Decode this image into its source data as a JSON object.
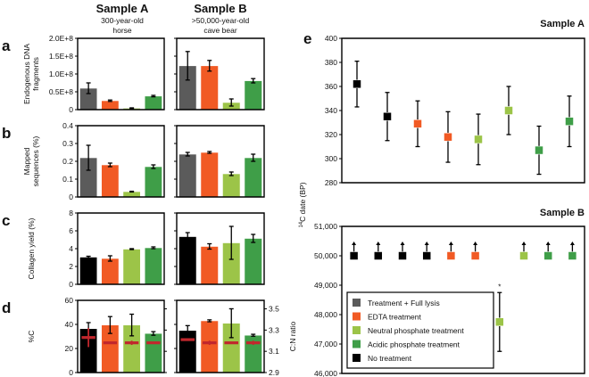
{
  "colors": {
    "full_lysis": "#5b5b5b",
    "edta": "#f15a24",
    "neutral": "#9cc448",
    "acidic": "#3f9e48",
    "none": "#000000",
    "cn_marker": "#c1272d"
  },
  "headers": {
    "sample_a": {
      "title": "Sample A",
      "line1": "300-year-old",
      "line2": "horse"
    },
    "sample_b": {
      "title": "Sample B",
      "line1": ">50,000-year-old",
      "line2": "cave bear"
    }
  },
  "chart_data": [
    {
      "panel": "a",
      "type": "bar",
      "ylabel": [
        "Endogenous DNA",
        "fragments"
      ],
      "ylim": [
        0,
        200000000
      ],
      "yticks": [
        0,
        50000000,
        100000000,
        150000000,
        200000000
      ],
      "ytick_labels": [
        "0",
        "0.5E+8",
        "1.0E+8",
        "1.5E+8",
        "2.0E+8"
      ],
      "bar_colors": [
        "full_lysis",
        "edta",
        "neutral",
        "acidic"
      ],
      "series": [
        {
          "sample": "A",
          "values": [
            60000000,
            25000000,
            4000000,
            38000000
          ],
          "errors": [
            15000000,
            2000000,
            1000000,
            2000000
          ]
        },
        {
          "sample": "B",
          "values": [
            123000000,
            123000000,
            20000000,
            81000000
          ],
          "errors": [
            40000000,
            15000000,
            10000000,
            6000000
          ]
        }
      ]
    },
    {
      "panel": "b",
      "type": "bar",
      "ylabel": [
        "Mapped",
        "sequences (%)"
      ],
      "ylim": [
        0,
        0.4
      ],
      "yticks": [
        0,
        0.1,
        0.2,
        0.3,
        0.4
      ],
      "ytick_labels": [
        "0",
        "0.1",
        "0.2",
        "0.3",
        "0.4"
      ],
      "bar_colors": [
        "full_lysis",
        "edta",
        "neutral",
        "acidic"
      ],
      "series": [
        {
          "sample": "A",
          "values": [
            0.22,
            0.18,
            0.03,
            0.17
          ],
          "errors": [
            0.07,
            0.01,
            0.002,
            0.01
          ]
        },
        {
          "sample": "B",
          "values": [
            0.24,
            0.25,
            0.13,
            0.22
          ],
          "errors": [
            0.01,
            0.005,
            0.01,
            0.02
          ]
        }
      ]
    },
    {
      "panel": "c",
      "type": "bar",
      "ylabel": [
        "Collagen yield (%)"
      ],
      "ylim": [
        0,
        8
      ],
      "yticks": [
        0,
        2,
        4,
        6,
        8
      ],
      "ytick_labels": [
        "0",
        "2",
        "4",
        "6",
        "8"
      ],
      "bar_colors": [
        "none",
        "edta",
        "neutral",
        "acidic"
      ],
      "series": [
        {
          "sample": "A",
          "values": [
            3.05,
            2.9,
            3.95,
            4.1
          ],
          "errors": [
            0.1,
            0.3,
            0.05,
            0.1
          ]
        },
        {
          "sample": "B",
          "values": [
            5.35,
            4.25,
            4.65,
            5.15
          ],
          "errors": [
            0.45,
            0.3,
            1.85,
            0.45
          ]
        }
      ]
    },
    {
      "panel": "d",
      "type": "bar",
      "ylabel": [
        "%C"
      ],
      "y2label": "C:N ratio",
      "ylim": [
        0,
        60
      ],
      "yticks": [
        0,
        20,
        40,
        60
      ],
      "ytick_labels": [
        "0",
        "20",
        "40",
        "60"
      ],
      "y2lim": [
        2.9,
        3.58
      ],
      "y2ticks": [
        2.9,
        3.1,
        3.3,
        3.5
      ],
      "y2tick_labels": [
        "2.9",
        "3.1",
        "3.3",
        "3.5"
      ],
      "bar_colors": [
        "none",
        "edta",
        "neutral",
        "acidic"
      ],
      "series": [
        {
          "sample": "A",
          "values": [
            36.5,
            39.5,
            39.5,
            32.5
          ],
          "errors": [
            5,
            7,
            9,
            1.5
          ],
          "cn_ratio": [
            3.23,
            3.18,
            3.18,
            3.18
          ],
          "cn_errors": [
            0.09,
            0.01,
            0.02,
            0.01
          ]
        },
        {
          "sample": "B",
          "values": [
            35,
            43,
            41,
            31
          ],
          "errors": [
            4,
            0.8,
            12,
            0.8
          ],
          "cn_ratio": [
            3.21,
            3.18,
            3.18,
            3.18
          ],
          "cn_errors": [
            0.005,
            0.02,
            0.01,
            0.02
          ]
        }
      ]
    },
    {
      "panel": "e",
      "type": "scatter",
      "ylabel": "14C date (BP)",
      "ylabel_sup": "14",
      "ylabel_rest": "C date (BP)",
      "subplots": [
        {
          "title": "Sample A",
          "ylim": [
            280,
            400
          ],
          "yticks": [
            280,
            300,
            320,
            340,
            360,
            380,
            400
          ],
          "ytick_labels": [
            "280",
            "300",
            "320",
            "340",
            "360",
            "380",
            "400"
          ],
          "points": [
            {
              "y": 362,
              "err": 19,
              "color": "none"
            },
            {
              "y": 335,
              "err": 20,
              "color": "none"
            },
            {
              "y": 329,
              "err": 19,
              "color": "edta"
            },
            {
              "y": 318,
              "err": 21,
              "color": "edta"
            },
            {
              "y": 316,
              "err": 21,
              "color": "neutral"
            },
            {
              "y": 340,
              "err": 20,
              "color": "neutral"
            },
            {
              "y": 307,
              "err": 20,
              "color": "acidic"
            },
            {
              "y": 331,
              "err": 21,
              "color": "acidic"
            }
          ]
        },
        {
          "title": "Sample B",
          "ylim": [
            46000,
            51000
          ],
          "yticks": [
            46000,
            47000,
            48000,
            49000,
            50000,
            51000
          ],
          "ytick_labels": [
            "46,000",
            "47,000",
            "48,000",
            "49,000",
            "50,000",
            "51,000"
          ],
          "points": [
            {
              "y": 50000,
              "lower_bound": true,
              "color": "none"
            },
            {
              "y": 50000,
              "lower_bound": true,
              "color": "none"
            },
            {
              "y": 50000,
              "lower_bound": true,
              "color": "none"
            },
            {
              "y": 50000,
              "lower_bound": true,
              "color": "none"
            },
            {
              "y": 50000,
              "lower_bound": true,
              "color": "edta"
            },
            {
              "y": 50000,
              "lower_bound": true,
              "color": "edta"
            },
            {
              "y": 47750,
              "err": 1000,
              "color": "neutral",
              "annotation": "*"
            },
            {
              "y": 50000,
              "lower_bound": true,
              "color": "neutral"
            },
            {
              "y": 50000,
              "lower_bound": true,
              "color": "acidic"
            },
            {
              "y": 50000,
              "lower_bound": true,
              "color": "acidic"
            }
          ]
        }
      ],
      "legend": {
        "placement": "bottom-left",
        "entries": [
          {
            "label": "Treatment + Full lysis",
            "color": "full_lysis"
          },
          {
            "label": "EDTA treatment",
            "color": "edta"
          },
          {
            "label": "Neutral phosphate treatment",
            "color": "neutral"
          },
          {
            "label": "Acidic phosphate treatment",
            "color": "acidic"
          },
          {
            "label": "No treatment",
            "color": "none"
          }
        ]
      }
    }
  ]
}
